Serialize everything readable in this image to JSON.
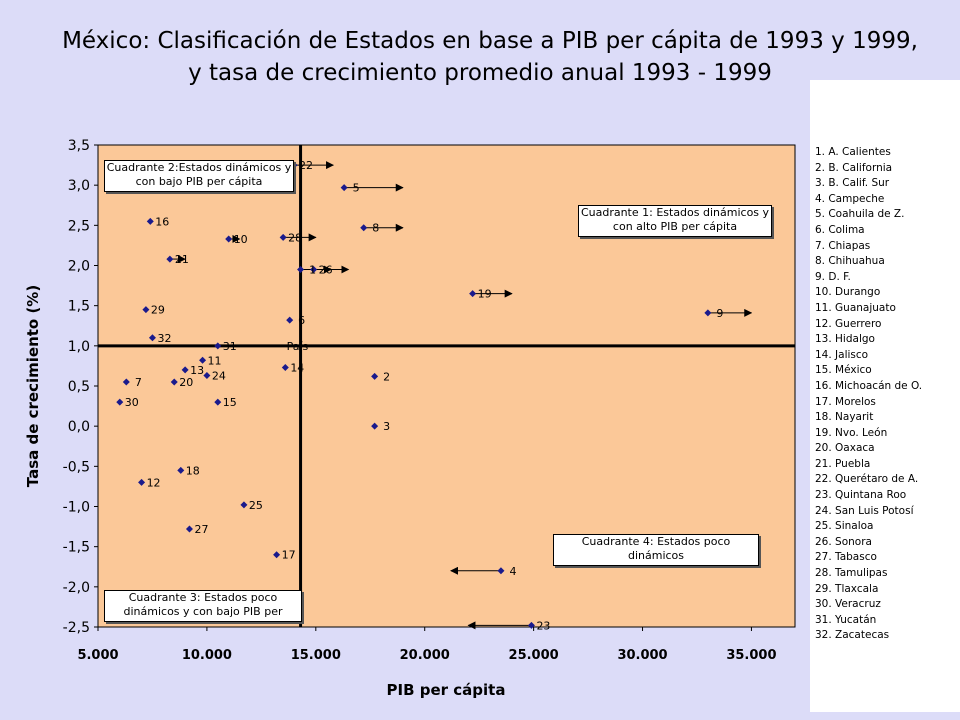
{
  "title_line1": "México: Clasificación de Estados en base a PIB per cápita de 1993 y 1999,",
  "title_line2": "y tasa de crecimiento promedio anual 1993 - 1999",
  "legend": [
    "1. A. Calientes",
    "2. B. California",
    "3. B. Calif. Sur",
    "4. Campeche",
    "5. Coahuila de Z.",
    "6. Colima",
    "7. Chiapas",
    "8. Chihuahua",
    "9. D. F.",
    "10. Durango",
    "11. Guanajuato",
    "12. Guerrero",
    "13. Hidalgo",
    "14. Jalisco",
    "15. México",
    "16. Michoacán de O.",
    "17. Morelos",
    "18. Nayarit",
    "19. Nvo. León",
    "20. Oaxaca",
    "21. Puebla",
    "22. Querétaro de A.",
    "23. Quintana Roo",
    "24. San Luis Potosí",
    "25. Sinaloa",
    "26. Sonora",
    "27. Tabasco",
    "28. Tamulipas",
    "29. Tlaxcala",
    "30. Veracruz",
    "31. Yucatán",
    "32. Zacatecas"
  ],
  "quadrants": {
    "q1": "Cuadrante 1: Estados dinámicos y con alto PIB per cápita",
    "q2": "Cuadrante 2:Estados dinámicos y con bajo PIB per cápita",
    "q3": "Cuadrante 3: Estados poco dinámicos y con bajo PIB per",
    "q4": "Cuadrante 4: Estados poco dinámicos"
  },
  "colors": {
    "plot_bg": "#fbc898",
    "page_bg": "#dcdcf8",
    "marker": "#1a1a8c"
  },
  "chart_data": {
    "type": "scatter",
    "xlabel": "PIB per cápita",
    "ylabel": "Tasa de crecimiento (%)",
    "xlim": [
      5000,
      37000
    ],
    "ylim": [
      -2.5,
      3.5
    ],
    "xticks": [
      "5.000",
      "10.000",
      "15.000",
      "20.000",
      "25.000",
      "30.000",
      "35.000"
    ],
    "yticks": [
      "-2,5",
      "-2,0",
      "-1,5",
      "-1,0",
      "-0,5",
      "0,0",
      "0,5",
      "1,0",
      "1,5",
      "2,0",
      "2,5",
      "3,0",
      "3,5"
    ],
    "reference_lines": {
      "x": 14300,
      "y": 1.0,
      "label": "País"
    },
    "points": [
      {
        "label": "1",
        "x": 14300,
        "y": 1.95,
        "x_end": 15700
      },
      {
        "label": "2",
        "x": 17700,
        "y": 0.62
      },
      {
        "label": "3",
        "x": 17700,
        "y": 0.0
      },
      {
        "label": "4",
        "x": 23500,
        "y": -1.8,
        "x_end": 21200
      },
      {
        "label": "5",
        "x": 16300,
        "y": 2.97,
        "x_end": 19000
      },
      {
        "label": "6",
        "x": 13800,
        "y": 1.32
      },
      {
        "label": "7",
        "x": 6300,
        "y": 0.55
      },
      {
        "label": "8",
        "x": 17200,
        "y": 2.47,
        "x_end": 19000
      },
      {
        "label": "9",
        "x": 33000,
        "y": 1.41,
        "x_end": 35000
      },
      {
        "label": "10",
        "x": 11000,
        "y": 2.33,
        "x_end": 11500
      },
      {
        "label": "11",
        "x": 9800,
        "y": 0.82
      },
      {
        "label": "12",
        "x": 7000,
        "y": -0.7
      },
      {
        "label": "13",
        "x": 9000,
        "y": 0.7
      },
      {
        "label": "14",
        "x": 13600,
        "y": 0.73
      },
      {
        "label": "15",
        "x": 10500,
        "y": 0.3
      },
      {
        "label": "16",
        "x": 7400,
        "y": 2.55
      },
      {
        "label": "17",
        "x": 13200,
        "y": -1.6
      },
      {
        "label": "18",
        "x": 8800,
        "y": -0.55
      },
      {
        "label": "19",
        "x": 22200,
        "y": 1.65,
        "x_end": 24000
      },
      {
        "label": "20",
        "x": 8500,
        "y": 0.55
      },
      {
        "label": "21",
        "x": 8300,
        "y": 2.08,
        "x_end": 9000
      },
      {
        "label": "22",
        "x": 14000,
        "y": 3.25,
        "x_end": 15800
      },
      {
        "label": "23",
        "x": 24900,
        "y": -2.48,
        "x_end": 22000
      },
      {
        "label": "24",
        "x": 10000,
        "y": 0.63
      },
      {
        "label": "25",
        "x": 11700,
        "y": -0.98
      },
      {
        "label": "26",
        "x": 14900,
        "y": 1.95,
        "x_end": 16500
      },
      {
        "label": "27",
        "x": 9200,
        "y": -1.28
      },
      {
        "label": "28",
        "x": 13500,
        "y": 2.35,
        "x_end": 15000
      },
      {
        "label": "29",
        "x": 7200,
        "y": 1.45
      },
      {
        "label": "30",
        "x": 6000,
        "y": 0.3
      },
      {
        "label": "31",
        "x": 10500,
        "y": 1.0
      },
      {
        "label": "32",
        "x": 7500,
        "y": 1.1
      }
    ]
  }
}
